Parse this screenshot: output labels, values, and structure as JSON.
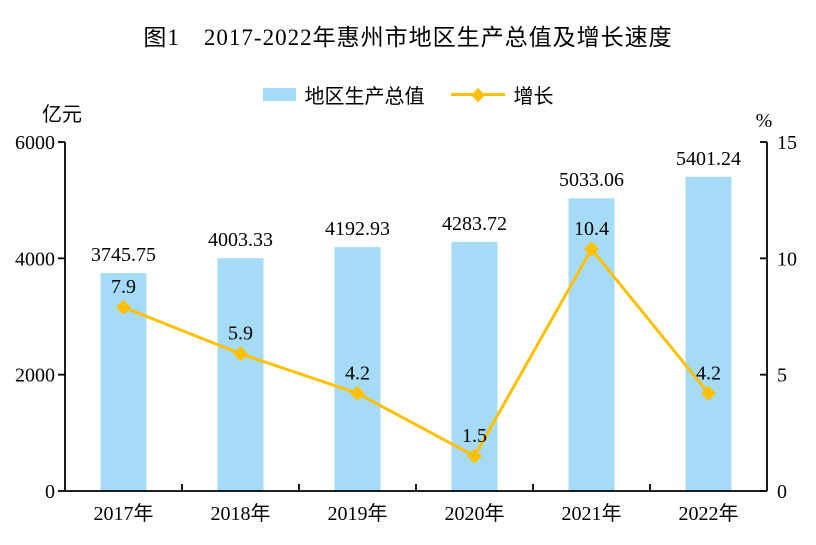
{
  "chart_data": {
    "type": "bar",
    "combo": "bar+line",
    "title": "图1　2017-2022年惠州市地区生产总值及增长速度",
    "categories": [
      "2017年",
      "2018年",
      "2019年",
      "2020年",
      "2021年",
      "2022年"
    ],
    "series": [
      {
        "name": "地区生产总值",
        "kind": "bar",
        "axis": "left",
        "color": "#A6DBF7",
        "values": [
          3745.75,
          4003.33,
          4192.93,
          4283.72,
          5033.06,
          5401.24
        ],
        "labels": [
          "3745.75",
          "4003.33",
          "4192.93",
          "4283.72",
          "5033.06",
          "5401.24"
        ]
      },
      {
        "name": "增长",
        "kind": "line",
        "axis": "right",
        "color": "#FFC000",
        "marker": "diamond",
        "values": [
          7.9,
          5.9,
          4.2,
          1.5,
          10.4,
          4.2
        ],
        "labels": [
          "7.9",
          "5.9",
          "4.2",
          "1.5",
          "10.4",
          "4.2"
        ]
      }
    ],
    "left_axis": {
      "unit": "亿元",
      "min": 0,
      "max": 6000,
      "ticks": [
        0,
        2000,
        4000,
        6000
      ]
    },
    "right_axis": {
      "unit": "%",
      "min": 0,
      "max": 15,
      "ticks": [
        0,
        5,
        10,
        15
      ]
    },
    "legend_position": "top",
    "grid": false,
    "axis_color": "#000000"
  }
}
